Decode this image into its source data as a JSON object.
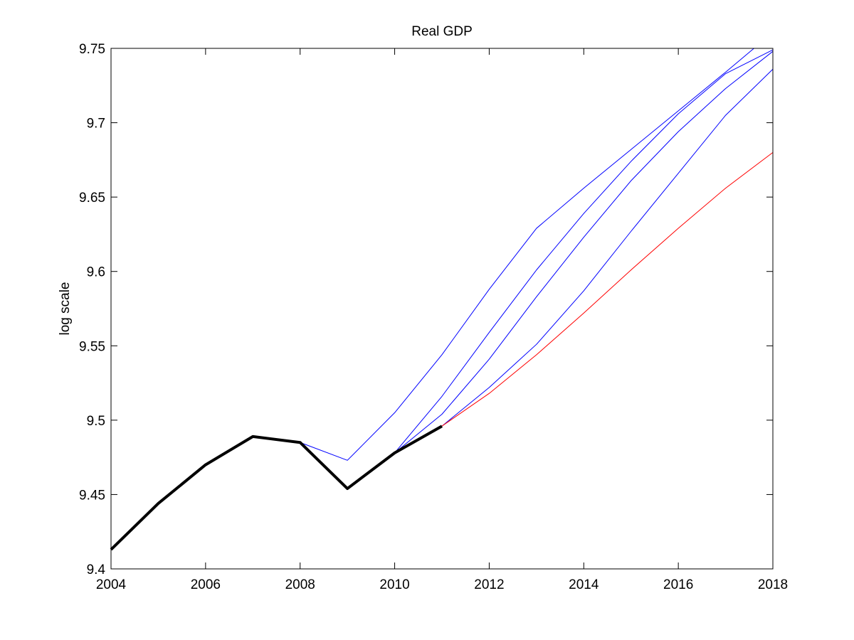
{
  "chart_data": {
    "type": "line",
    "title": "Real GDP",
    "xlabel": "",
    "ylabel": "log scale",
    "xlim": [
      2004,
      2018
    ],
    "ylim": [
      9.4,
      9.75
    ],
    "x_ticks": [
      "2004",
      "2006",
      "2008",
      "2010",
      "2012",
      "2014",
      "2016",
      "2018"
    ],
    "y_ticks": [
      "9.4",
      "9.45",
      "9.5",
      "9.55",
      "9.6",
      "9.65",
      "9.7",
      "9.75"
    ],
    "grid": false,
    "legend": "none",
    "series": [
      {
        "color": "#0000ff",
        "style": "thin",
        "points": [
          [
            2008,
            9.485
          ],
          [
            2009,
            9.473
          ],
          [
            2010,
            9.505
          ],
          [
            2011,
            9.544
          ],
          [
            2012,
            9.588
          ],
          [
            2013,
            9.629
          ],
          [
            2014,
            9.656
          ],
          [
            2015,
            9.682
          ],
          [
            2016,
            9.708
          ],
          [
            2017,
            9.734
          ],
          [
            2017.6,
            9.75
          ]
        ]
      },
      {
        "color": "#0000ff",
        "style": "thin",
        "points": [
          [
            2009,
            9.454
          ],
          [
            2010,
            9.478
          ],
          [
            2011,
            9.516
          ],
          [
            2012,
            9.559
          ],
          [
            2013,
            9.601
          ],
          [
            2014,
            9.639
          ],
          [
            2015,
            9.674
          ],
          [
            2016,
            9.706
          ],
          [
            2017,
            9.733
          ],
          [
            2018,
            9.749
          ]
        ]
      },
      {
        "color": "#0000ff",
        "style": "thin",
        "points": [
          [
            2010,
            9.478
          ],
          [
            2011,
            9.504
          ],
          [
            2012,
            9.541
          ],
          [
            2013,
            9.583
          ],
          [
            2014,
            9.623
          ],
          [
            2015,
            9.661
          ],
          [
            2016,
            9.694
          ],
          [
            2017,
            9.723
          ],
          [
            2018,
            9.748
          ]
        ]
      },
      {
        "color": "#0000ff",
        "style": "thin",
        "points": [
          [
            2011,
            9.496
          ],
          [
            2012,
            9.522
          ],
          [
            2013,
            9.551
          ],
          [
            2014,
            9.587
          ],
          [
            2015,
            9.627
          ],
          [
            2016,
            9.666
          ],
          [
            2017,
            9.705
          ],
          [
            2018,
            9.736
          ]
        ]
      },
      {
        "color": "#ff0000",
        "style": "thin",
        "points": [
          [
            2011,
            9.496
          ],
          [
            2012,
            9.518
          ],
          [
            2013,
            9.544
          ],
          [
            2014,
            9.572
          ],
          [
            2015,
            9.601
          ],
          [
            2016,
            9.629
          ],
          [
            2017,
            9.656
          ],
          [
            2018,
            9.68
          ]
        ]
      },
      {
        "color": "#000000",
        "style": "thick",
        "points": [
          [
            2004,
            9.413
          ],
          [
            2005,
            9.444
          ],
          [
            2006,
            9.47
          ],
          [
            2007,
            9.489
          ],
          [
            2008,
            9.485
          ],
          [
            2009,
            9.454
          ],
          [
            2010,
            9.478
          ],
          [
            2011,
            9.496
          ]
        ]
      }
    ]
  }
}
